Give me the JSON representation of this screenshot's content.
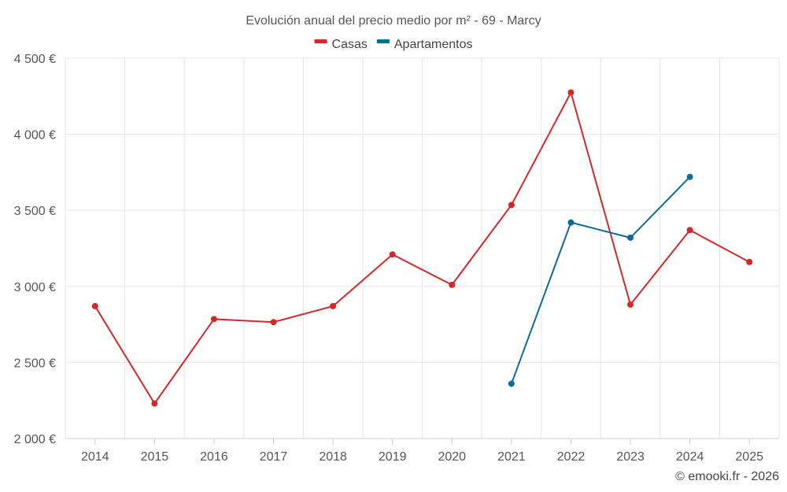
{
  "chart_data": {
    "type": "line",
    "title": "Evolución anual del precio medio por m² - 69 - Marcy",
    "categories": [
      "2014",
      "2015",
      "2016",
      "2017",
      "2018",
      "2019",
      "2020",
      "2021",
      "2022",
      "2023",
      "2024",
      "2025"
    ],
    "series": [
      {
        "name": "Casas",
        "color": "#d62728",
        "values": [
          2870,
          2230,
          2785,
          2765,
          2870,
          3210,
          3010,
          3535,
          4275,
          2880,
          3370,
          3160
        ]
      },
      {
        "name": "Apartamentos",
        "color": "#0b6a9c",
        "values": [
          null,
          null,
          null,
          null,
          null,
          null,
          null,
          2360,
          3420,
          3320,
          3720,
          null
        ]
      }
    ],
    "ylim": [
      2000,
      4500
    ],
    "yticks": [
      2000,
      2500,
      3000,
      3500,
      4000,
      4500
    ],
    "ytick_labels": [
      "2 000 €",
      "2 500 €",
      "3 000 €",
      "3 500 €",
      "4 000 €",
      "4 500 €"
    ],
    "xlabel": "",
    "ylabel": "",
    "grid": true,
    "legend_position": "top-center"
  },
  "credit": "© emooki.fr - 2026"
}
